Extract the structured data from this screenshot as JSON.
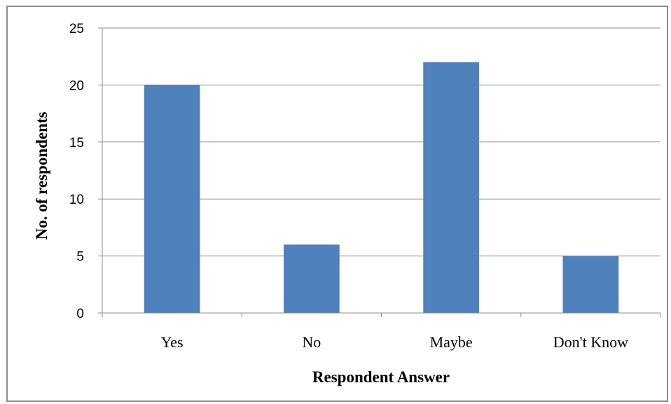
{
  "chart_data": {
    "type": "bar",
    "title": "",
    "categories": [
      "Yes",
      "No",
      "Maybe",
      "Don't Know"
    ],
    "series": [
      {
        "values": [
          20,
          6,
          22,
          5
        ],
        "color": "#4f81bd"
      }
    ],
    "xlabel": "Respondent Answer",
    "ylabel": "No. of respondents",
    "ylim": [
      0,
      25
    ],
    "yticks": [
      0,
      5,
      10,
      15,
      20,
      25
    ],
    "grid": true,
    "legend": "none"
  }
}
